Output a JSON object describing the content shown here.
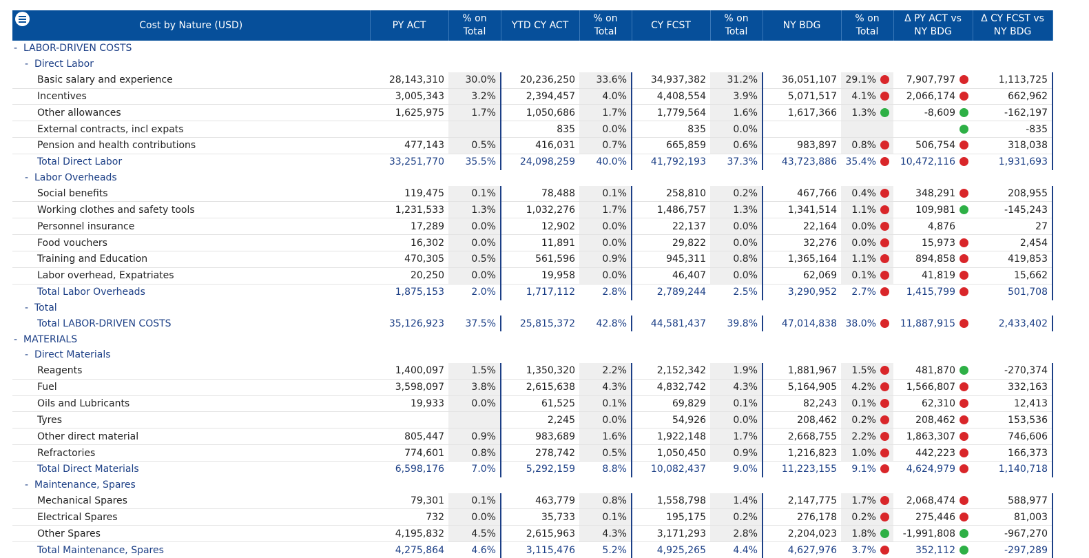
{
  "header": {
    "menu_icon": "hamburger-menu-icon",
    "columns": [
      "Cost by Nature (USD)",
      "PY ACT",
      "% on Total",
      "YTD CY ACT",
      "% on Total",
      "CY FCST",
      "% on Total",
      "NY BDG",
      "% on Total",
      "Δ PY ACT vs NY BDG",
      "Δ CY FCST vs NY BDG"
    ]
  },
  "colors": {
    "header_bg": "#064f9a",
    "label_blue": "#1c3f86",
    "dot_red": "#d9262a",
    "dot_green": "#2eb046"
  },
  "rows": [
    {
      "type": "group",
      "level": 0,
      "label": "LABOR-DRIVEN COSTS",
      "toggle": "-"
    },
    {
      "type": "group",
      "level": 1,
      "label": "Direct Labor",
      "toggle": "-"
    },
    {
      "type": "detail",
      "label": "Basic salary and experience",
      "py": "28,143,310",
      "pyp": "30.0%",
      "ytd": "20,236,250",
      "ytdp": "33.6%",
      "fc": "34,937,382",
      "fcp": "31.2%",
      "bdg": "36,051,107",
      "bdgp": "29.1%",
      "d1": "7,907,797",
      "d1c": "red",
      "d2": "1,113,725",
      "d2c": "red"
    },
    {
      "type": "detail",
      "label": "Incentives",
      "py": "3,005,343",
      "pyp": "3.2%",
      "ytd": "2,394,457",
      "ytdp": "4.0%",
      "fc": "4,408,554",
      "fcp": "3.9%",
      "bdg": "5,071,517",
      "bdgp": "4.1%",
      "d1": "2,066,174",
      "d1c": "red",
      "d2": "662,962",
      "d2c": "red"
    },
    {
      "type": "detail",
      "label": "Other allowances",
      "py": "1,625,975",
      "pyp": "1.7%",
      "ytd": "1,050,686",
      "ytdp": "1.7%",
      "fc": "1,779,564",
      "fcp": "1.6%",
      "bdg": "1,617,366",
      "bdgp": "1.3%",
      "d1": "-8,609",
      "d1c": "green",
      "d2": "-162,197",
      "d2c": "green"
    },
    {
      "type": "detail",
      "label": "External contracts, incl expats",
      "py": "",
      "pyp": "",
      "ytd": "835",
      "ytdp": "0.0%",
      "fc": "835",
      "fcp": "0.0%",
      "bdg": "",
      "bdgp": "",
      "d1": "",
      "d1c": "",
      "d2": "-835",
      "d2c": "green"
    },
    {
      "type": "detail",
      "label": "Pension and health contributions",
      "py": "477,143",
      "pyp": "0.5%",
      "ytd": "416,031",
      "ytdp": "0.7%",
      "fc": "665,859",
      "fcp": "0.6%",
      "bdg": "983,897",
      "bdgp": "0.8%",
      "d1": "506,754",
      "d1c": "red",
      "d2": "318,038",
      "d2c": "red"
    },
    {
      "type": "total",
      "label": "Total Direct Labor",
      "py": "33,251,770",
      "pyp": "35.5%",
      "ytd": "24,098,259",
      "ytdp": "40.0%",
      "fc": "41,792,193",
      "fcp": "37.3%",
      "bdg": "43,723,886",
      "bdgp": "35.4%",
      "d1": "10,472,116",
      "d1c": "red",
      "d2": "1,931,693",
      "d2c": "red"
    },
    {
      "type": "group",
      "level": 1,
      "label": "Labor Overheads",
      "toggle": "-"
    },
    {
      "type": "detail",
      "label": "Social benefits",
      "py": "119,475",
      "pyp": "0.1%",
      "ytd": "78,488",
      "ytdp": "0.1%",
      "fc": "258,810",
      "fcp": "0.2%",
      "bdg": "467,766",
      "bdgp": "0.4%",
      "d1": "348,291",
      "d1c": "red",
      "d2": "208,955",
      "d2c": "red"
    },
    {
      "type": "detail",
      "label": "Working clothes and safety tools",
      "py": "1,231,533",
      "pyp": "1.3%",
      "ytd": "1,032,276",
      "ytdp": "1.7%",
      "fc": "1,486,757",
      "fcp": "1.3%",
      "bdg": "1,341,514",
      "bdgp": "1.1%",
      "d1": "109,981",
      "d1c": "red",
      "d2": "-145,243",
      "d2c": "green"
    },
    {
      "type": "detail",
      "label": "Personnel insurance",
      "py": "17,289",
      "pyp": "0.0%",
      "ytd": "12,902",
      "ytdp": "0.0%",
      "fc": "22,137",
      "fcp": "0.0%",
      "bdg": "22,164",
      "bdgp": "0.0%",
      "d1": "4,876",
      "d1c": "red",
      "d2": "27",
      "d2c": ""
    },
    {
      "type": "detail",
      "label": "Food vouchers",
      "py": "16,302",
      "pyp": "0.0%",
      "ytd": "11,891",
      "ytdp": "0.0%",
      "fc": "29,822",
      "fcp": "0.0%",
      "bdg": "32,276",
      "bdgp": "0.0%",
      "d1": "15,973",
      "d1c": "red",
      "d2": "2,454",
      "d2c": "red"
    },
    {
      "type": "detail",
      "label": "Training and Education",
      "py": "470,305",
      "pyp": "0.5%",
      "ytd": "561,596",
      "ytdp": "0.9%",
      "fc": "945,311",
      "fcp": "0.8%",
      "bdg": "1,365,164",
      "bdgp": "1.1%",
      "d1": "894,858",
      "d1c": "red",
      "d2": "419,853",
      "d2c": "red"
    },
    {
      "type": "detail",
      "label": "Labor overhead, Expatriates",
      "py": "20,250",
      "pyp": "0.0%",
      "ytd": "19,958",
      "ytdp": "0.0%",
      "fc": "46,407",
      "fcp": "0.0%",
      "bdg": "62,069",
      "bdgp": "0.1%",
      "d1": "41,819",
      "d1c": "red",
      "d2": "15,662",
      "d2c": "red"
    },
    {
      "type": "total",
      "label": "Total Labor Overheads",
      "py": "1,875,153",
      "pyp": "2.0%",
      "ytd": "1,717,112",
      "ytdp": "2.8%",
      "fc": "2,789,244",
      "fcp": "2.5%",
      "bdg": "3,290,952",
      "bdgp": "2.7%",
      "d1": "1,415,799",
      "d1c": "red",
      "d2": "501,708",
      "d2c": "red"
    },
    {
      "type": "group",
      "level": 1,
      "label": "Total",
      "toggle": "-"
    },
    {
      "type": "total",
      "label": "Total LABOR-DRIVEN COSTS",
      "py": "35,126,923",
      "pyp": "37.5%",
      "ytd": "25,815,372",
      "ytdp": "42.8%",
      "fc": "44,581,437",
      "fcp": "39.8%",
      "bdg": "47,014,838",
      "bdgp": "38.0%",
      "d1": "11,887,915",
      "d1c": "red",
      "d2": "2,433,402",
      "d2c": "red"
    },
    {
      "type": "group",
      "level": 0,
      "label": "MATERIALS",
      "toggle": "-"
    },
    {
      "type": "group",
      "level": 1,
      "label": "Direct Materials",
      "toggle": "-"
    },
    {
      "type": "detail",
      "label": "Reagents",
      "py": "1,400,097",
      "pyp": "1.5%",
      "ytd": "1,350,320",
      "ytdp": "2.2%",
      "fc": "2,152,342",
      "fcp": "1.9%",
      "bdg": "1,881,967",
      "bdgp": "1.5%",
      "d1": "481,870",
      "d1c": "red",
      "d2": "-270,374",
      "d2c": "green"
    },
    {
      "type": "detail",
      "label": "Fuel",
      "py": "3,598,097",
      "pyp": "3.8%",
      "ytd": "2,615,638",
      "ytdp": "4.3%",
      "fc": "4,832,742",
      "fcp": "4.3%",
      "bdg": "5,164,905",
      "bdgp": "4.2%",
      "d1": "1,566,807",
      "d1c": "red",
      "d2": "332,163",
      "d2c": "red"
    },
    {
      "type": "detail",
      "label": "Oils and Lubricants",
      "py": "19,933",
      "pyp": "0.0%",
      "ytd": "61,525",
      "ytdp": "0.1%",
      "fc": "69,829",
      "fcp": "0.1%",
      "bdg": "82,243",
      "bdgp": "0.1%",
      "d1": "62,310",
      "d1c": "red",
      "d2": "12,413",
      "d2c": "red"
    },
    {
      "type": "detail",
      "label": "Tyres",
      "py": "",
      "pyp": "",
      "ytd": "2,245",
      "ytdp": "0.0%",
      "fc": "54,926",
      "fcp": "0.0%",
      "bdg": "208,462",
      "bdgp": "0.2%",
      "d1": "208,462",
      "d1c": "red",
      "d2": "153,536",
      "d2c": "red"
    },
    {
      "type": "detail",
      "label": "Other direct material",
      "py": "805,447",
      "pyp": "0.9%",
      "ytd": "983,689",
      "ytdp": "1.6%",
      "fc": "1,922,148",
      "fcp": "1.7%",
      "bdg": "2,668,755",
      "bdgp": "2.2%",
      "d1": "1,863,307",
      "d1c": "red",
      "d2": "746,606",
      "d2c": "red"
    },
    {
      "type": "detail",
      "label": "Refractories",
      "py": "774,601",
      "pyp": "0.8%",
      "ytd": "278,742",
      "ytdp": "0.5%",
      "fc": "1,050,450",
      "fcp": "0.9%",
      "bdg": "1,216,823",
      "bdgp": "1.0%",
      "d1": "442,223",
      "d1c": "red",
      "d2": "166,373",
      "d2c": "red"
    },
    {
      "type": "total",
      "label": "Total Direct Materials",
      "py": "6,598,176",
      "pyp": "7.0%",
      "ytd": "5,292,159",
      "ytdp": "8.8%",
      "fc": "10,082,437",
      "fcp": "9.0%",
      "bdg": "11,223,155",
      "bdgp": "9.1%",
      "d1": "4,624,979",
      "d1c": "red",
      "d2": "1,140,718",
      "d2c": "red"
    },
    {
      "type": "group",
      "level": 1,
      "label": "Maintenance, Spares",
      "toggle": "-"
    },
    {
      "type": "detail",
      "label": "Mechanical Spares",
      "py": "79,301",
      "pyp": "0.1%",
      "ytd": "463,779",
      "ytdp": "0.8%",
      "fc": "1,558,798",
      "fcp": "1.4%",
      "bdg": "2,147,775",
      "bdgp": "1.7%",
      "d1": "2,068,474",
      "d1c": "red",
      "d2": "588,977",
      "d2c": "red"
    },
    {
      "type": "detail",
      "label": "Electrical Spares",
      "py": "732",
      "pyp": "0.0%",
      "ytd": "35,733",
      "ytdp": "0.1%",
      "fc": "195,175",
      "fcp": "0.2%",
      "bdg": "276,178",
      "bdgp": "0.2%",
      "d1": "275,446",
      "d1c": "red",
      "d2": "81,003",
      "d2c": "red"
    },
    {
      "type": "detail",
      "label": "Other Spares",
      "py": "4,195,832",
      "pyp": "4.5%",
      "ytd": "2,615,963",
      "ytdp": "4.3%",
      "fc": "3,171,293",
      "fcp": "2.8%",
      "bdg": "2,204,023",
      "bdgp": "1.8%",
      "d1": "-1,991,808",
      "d1c": "green",
      "d2": "-967,270",
      "d2c": "green"
    },
    {
      "type": "total",
      "label": "Total Maintenance, Spares",
      "py": "4,275,864",
      "pyp": "4.6%",
      "ytd": "3,115,476",
      "ytdp": "5.2%",
      "fc": "4,925,265",
      "fcp": "4.4%",
      "bdg": "4,627,976",
      "bdgp": "3.7%",
      "d1": "352,112",
      "d1c": "red",
      "d2": "-297,289",
      "d2c": "green"
    }
  ]
}
